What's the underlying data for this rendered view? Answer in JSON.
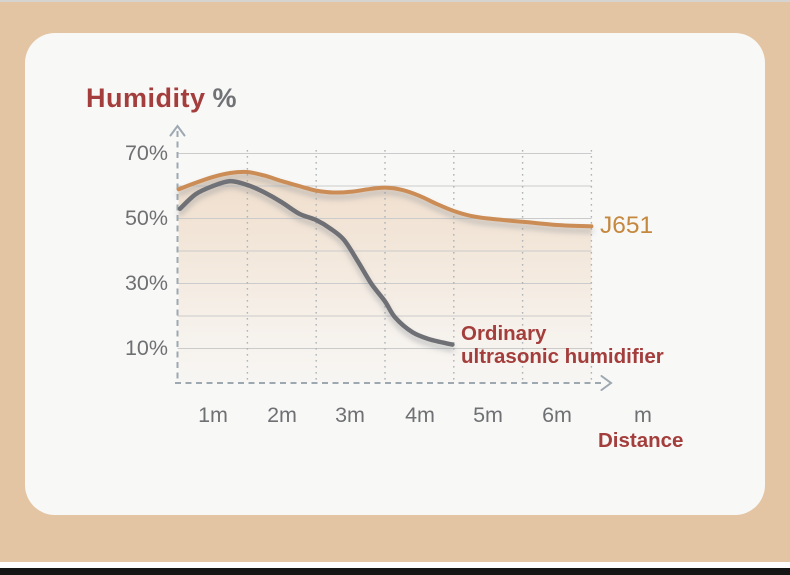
{
  "page": {
    "background": "#e4c5a3",
    "card_background": "#f8f8f7",
    "bottom_strip_color": "#151515",
    "accent_red": "#a43e3c",
    "accent_orange": "#c5883f",
    "tick_gray": "#6f7073",
    "axis_gray": "#9da8b0"
  },
  "header": {
    "title": "Humidity",
    "unit": "%"
  },
  "chart_data": {
    "type": "line",
    "title": "Humidity %",
    "xlabel": "Distance",
    "x_unit": "m",
    "ylabel": "Humidity %",
    "xlim": [
      0.5,
      6.5
    ],
    "ylim": [
      0,
      75
    ],
    "grid": true,
    "legend_position": "inline-right-of-curves",
    "ytick_labels": [
      "70%",
      "50%",
      "30%",
      "10%"
    ],
    "ytick_values": [
      70,
      50,
      30,
      10
    ],
    "ygrid_values": [
      70,
      60,
      50,
      40,
      30,
      20,
      10
    ],
    "xtick_labels": [
      "1m",
      "2m",
      "3m",
      "4m",
      "5m",
      "6m"
    ],
    "xtick_values": [
      1,
      2,
      3,
      4,
      5,
      6
    ],
    "xgrid_values": [
      1.5,
      2.5,
      3.5,
      4.5,
      5.5,
      6.5
    ],
    "series": [
      {
        "name": "J651",
        "label_color": "#c5883f",
        "color": "#cb8d55",
        "fill_under": true,
        "x": [
          0.5,
          0.75,
          1.0,
          1.25,
          1.5,
          1.75,
          2.0,
          2.25,
          2.5,
          2.75,
          3.0,
          3.25,
          3.5,
          3.75,
          4.0,
          4.25,
          4.5,
          4.75,
          5.0,
          5.5,
          6.0,
          6.5
        ],
        "values": [
          59,
          61,
          62.8,
          64,
          64.3,
          63.2,
          61.5,
          60,
          58.6,
          58,
          58.2,
          59,
          59.5,
          58.8,
          57,
          54.5,
          52.3,
          50.8,
          50,
          49,
          48,
          47.6
        ]
      },
      {
        "name": "Ordinary ultrasonic humidifier",
        "label_lines": [
          "Ordinary",
          "ultrasonic humidifier"
        ],
        "label_color": "#a43e3c",
        "color": "#6e7074",
        "fill_under": false,
        "x": [
          0.52,
          0.75,
          1.0,
          1.25,
          1.5,
          1.75,
          2.0,
          2.25,
          2.5,
          2.7,
          2.9,
          3.1,
          3.3,
          3.5,
          3.65,
          3.9,
          4.15,
          4.48
        ],
        "values": [
          53,
          57.5,
          60,
          61.5,
          60.3,
          58,
          55,
          51.5,
          49.5,
          47,
          43.5,
          37,
          30,
          24.5,
          19.5,
          15,
          12.8,
          11.2
        ]
      }
    ]
  }
}
